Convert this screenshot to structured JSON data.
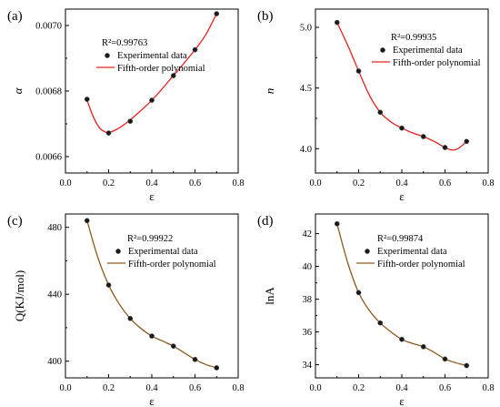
{
  "chart_data": [
    {
      "panel": "(a)",
      "type": "scatter",
      "xlabel": "ε",
      "ylabel": "α",
      "ylabel_italic": true,
      "xlim": [
        0.0,
        0.8
      ],
      "ylim": [
        0.00655,
        0.00705
      ],
      "x_ticks": [
        "0.0",
        "0.2",
        "0.4",
        "0.6",
        "0.8"
      ],
      "y_ticks": [
        "0.0066",
        "0.0068",
        "0.0070"
      ],
      "y_tick_values": [
        0.0066,
        0.0068,
        0.007
      ],
      "annotation": "R²=0.99763",
      "curve_color": "#e8201c",
      "legend": {
        "points": "Experimental data",
        "line": "Fifth-order polynomial",
        "placement": "top-left"
      },
      "series": [
        {
          "name": "Experimental data",
          "kind": "points",
          "x": [
            0.1,
            0.2,
            0.3,
            0.4,
            0.5,
            0.6,
            0.7
          ],
          "y": [
            0.006775,
            0.006672,
            0.006708,
            0.006772,
            0.006847,
            0.006926,
            0.007036
          ]
        },
        {
          "name": "Fifth-order polynomial",
          "kind": "curve",
          "x": [
            0.1,
            0.13,
            0.16,
            0.19,
            0.21,
            0.25,
            0.3,
            0.4,
            0.5,
            0.6,
            0.65,
            0.7
          ],
          "y": [
            0.006772,
            0.00672,
            0.006686,
            0.006674,
            0.006675,
            0.006688,
            0.006712,
            0.006772,
            0.006847,
            0.006926,
            0.006972,
            0.007036
          ]
        }
      ]
    },
    {
      "panel": "(b)",
      "type": "scatter",
      "xlabel": "ε",
      "ylabel": "n",
      "ylabel_italic": true,
      "xlim": [
        0.0,
        0.8
      ],
      "ylim": [
        3.8,
        5.15
      ],
      "x_ticks": [
        "0.0",
        "0.2",
        "0.4",
        "0.6",
        "0.8"
      ],
      "y_ticks": [
        "4.0",
        "4.5",
        "5.0"
      ],
      "y_tick_values": [
        4.0,
        4.5,
        5.0
      ],
      "annotation": "R²=0.99935",
      "curve_color": "#e8201c",
      "legend": {
        "points": "Experimental data",
        "line": "Fifth-order polynomial",
        "placement": "top-right"
      },
      "series": [
        {
          "name": "Experimental data",
          "kind": "points",
          "x": [
            0.1,
            0.2,
            0.3,
            0.4,
            0.5,
            0.6,
            0.7
          ],
          "y": [
            5.04,
            4.64,
            4.3,
            4.17,
            4.1,
            4.01,
            4.06
          ]
        },
        {
          "name": "Fifth-order polynomial",
          "kind": "curve",
          "x": [
            0.1,
            0.15,
            0.2,
            0.25,
            0.3,
            0.35,
            0.4,
            0.45,
            0.5,
            0.55,
            0.6,
            0.63,
            0.66,
            0.7
          ],
          "y": [
            5.04,
            4.85,
            4.64,
            4.44,
            4.3,
            4.22,
            4.17,
            4.13,
            4.1,
            4.06,
            4.01,
            3.99,
            4.0,
            4.06
          ]
        }
      ]
    },
    {
      "panel": "(c)",
      "type": "scatter",
      "xlabel": "ε",
      "ylabel": "Q(KJ/mol)",
      "ylabel_italic": false,
      "xlim": [
        0.0,
        0.8
      ],
      "ylim": [
        390,
        488
      ],
      "x_ticks": [
        "0.0",
        "0.2",
        "0.4",
        "0.6",
        "0.8"
      ],
      "y_ticks": [
        "400",
        "440",
        "480"
      ],
      "y_tick_values": [
        400,
        440,
        480
      ],
      "annotation": "R²=0.99922",
      "curve_color": "#8a5a1e",
      "legend": {
        "points": "Experimental data",
        "line": "Fifth-order polynomial",
        "placement": "top-right"
      },
      "series": [
        {
          "name": "Experimental data",
          "kind": "points",
          "x": [
            0.1,
            0.2,
            0.3,
            0.4,
            0.5,
            0.6,
            0.7
          ],
          "y": [
            484,
            445.5,
            425.5,
            415,
            409,
            401,
            396
          ]
        },
        {
          "name": "Fifth-order polynomial",
          "kind": "curve",
          "x": [
            0.1,
            0.15,
            0.2,
            0.25,
            0.3,
            0.35,
            0.4,
            0.45,
            0.5,
            0.55,
            0.6,
            0.65,
            0.7
          ],
          "y": [
            484,
            462,
            445.5,
            434,
            425.5,
            419.5,
            415,
            412,
            409,
            405,
            401,
            398,
            396
          ]
        }
      ]
    },
    {
      "panel": "(d)",
      "type": "scatter",
      "xlabel": "ε",
      "ylabel": "lnA",
      "ylabel_italic": false,
      "xlim": [
        0.0,
        0.8
      ],
      "ylim": [
        33.2,
        43.2
      ],
      "x_ticks": [
        "0.0",
        "0.2",
        "0.4",
        "0.6",
        "0.8"
      ],
      "y_ticks": [
        "34",
        "36",
        "38",
        "40",
        "42"
      ],
      "y_tick_values": [
        34,
        36,
        38,
        40,
        42
      ],
      "annotation": "R²=0.99874",
      "curve_color": "#8a5a1e",
      "legend": {
        "points": "Experimental data",
        "line": "Fifth-order polynomial",
        "placement": "top-right"
      },
      "series": [
        {
          "name": "Experimental data",
          "kind": "points",
          "x": [
            0.1,
            0.2,
            0.3,
            0.4,
            0.5,
            0.6,
            0.7
          ],
          "y": [
            42.6,
            38.4,
            36.55,
            35.55,
            35.1,
            34.35,
            33.95
          ]
        },
        {
          "name": "Fifth-order polynomial",
          "kind": "curve",
          "x": [
            0.1,
            0.15,
            0.2,
            0.25,
            0.3,
            0.35,
            0.4,
            0.45,
            0.5,
            0.55,
            0.6,
            0.65,
            0.7
          ],
          "y": [
            42.6,
            40.2,
            38.4,
            37.3,
            36.55,
            36.0,
            35.55,
            35.3,
            35.1,
            34.75,
            34.35,
            34.12,
            33.95
          ]
        }
      ]
    }
  ]
}
